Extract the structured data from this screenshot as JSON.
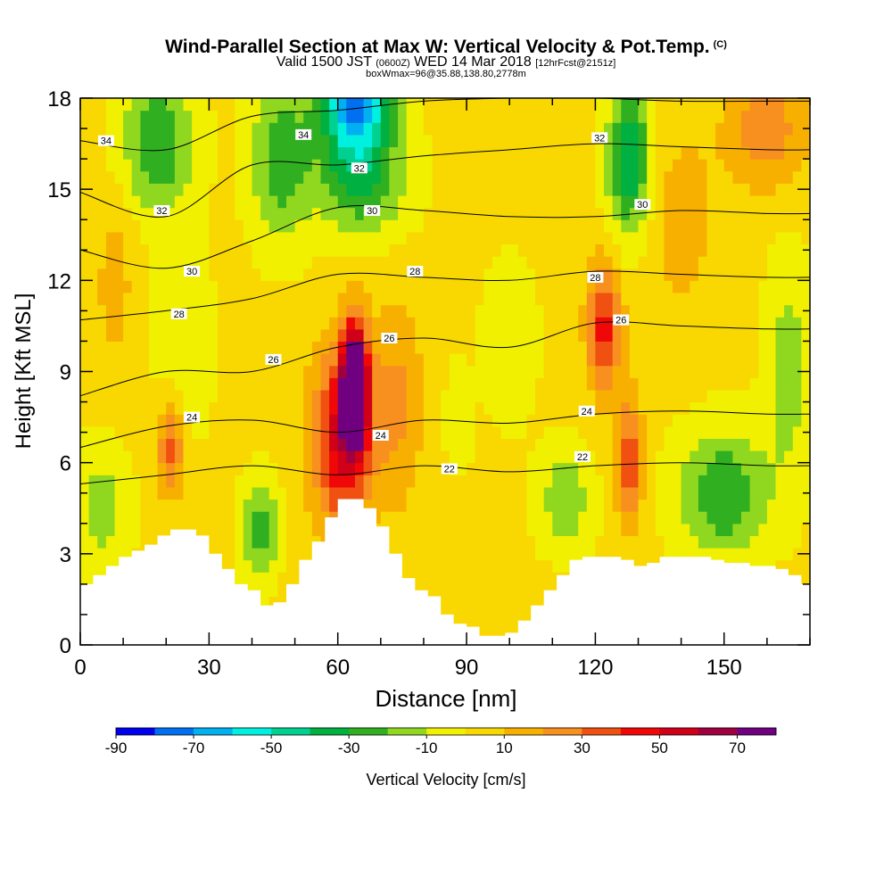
{
  "title": {
    "main": "Wind-Parallel Section at Max W: Vertical Velocity & Pot.Temp.",
    "main_tag": "(C)",
    "sub_valid": "Valid 1500 JST",
    "sub_utc": "(0600Z)",
    "sub_date": "WED 14 Mar 2018",
    "sub_fcst": "[12hrFcst@2151z]",
    "sub2": "boxWmax=96@35.88,138.80,2778m"
  },
  "chart_data": {
    "type": "heatmap",
    "xlabel": "Distance [nm]",
    "ylabel": "Height [Kft MSL]",
    "xlim": [
      0,
      170
    ],
    "ylim": [
      0,
      18
    ],
    "x_ticks": [
      0,
      30,
      60,
      90,
      120,
      150
    ],
    "y_ticks": [
      0,
      3,
      6,
      9,
      12,
      15,
      18
    ],
    "colorbar": {
      "label": "Vertical Velocity [cm/s]",
      "bins": [
        -90,
        -80,
        -70,
        -60,
        -50,
        -40,
        -30,
        -20,
        -10,
        0,
        10,
        20,
        30,
        40,
        50,
        60,
        70,
        80
      ],
      "tick_labels": [
        "-90",
        "-70",
        "-50",
        "-30",
        "-10",
        "10",
        "30",
        "50",
        "70"
      ],
      "colors": [
        "#0000f0",
        "#0070f0",
        "#00b0f0",
        "#00f0e0",
        "#00d090",
        "#00b040",
        "#30b020",
        "#90d820",
        "#f0f000",
        "#f8d800",
        "#f8b000",
        "#f89020",
        "#f05010",
        "#f00808",
        "#d00018",
        "#a00040",
        "#700080"
      ]
    },
    "terrain": {
      "x": [
        0,
        3,
        6,
        9,
        12,
        15,
        18,
        21,
        24,
        27,
        30,
        33,
        36,
        39,
        42,
        45,
        48,
        51,
        54,
        57,
        60,
        63,
        66,
        69,
        72,
        75,
        78,
        81,
        84,
        87,
        90,
        93,
        96,
        99,
        102,
        105,
        108,
        111,
        114,
        117,
        120,
        123,
        126,
        129,
        132,
        135,
        138,
        141,
        144,
        147,
        150,
        153,
        156,
        159,
        162,
        165,
        168,
        170
      ],
      "height": [
        2.0,
        2.3,
        2.6,
        2.9,
        3.1,
        3.3,
        3.6,
        3.8,
        3.8,
        3.6,
        3.0,
        2.5,
        2.0,
        1.8,
        1.3,
        1.4,
        2.0,
        2.8,
        3.4,
        4.2,
        4.8,
        4.8,
        4.5,
        3.9,
        3.0,
        2.2,
        1.8,
        1.6,
        1.0,
        0.7,
        0.6,
        0.3,
        0.3,
        0.4,
        0.8,
        1.3,
        1.8,
        2.3,
        2.8,
        2.9,
        2.9,
        2.9,
        2.8,
        2.6,
        2.7,
        2.9,
        2.9,
        2.9,
        2.9,
        2.8,
        2.7,
        2.7,
        2.6,
        2.6,
        2.5,
        2.3,
        2.0,
        2.0
      ]
    },
    "w_features": [
      {
        "x": 18,
        "y": 16.5,
        "amp": -32,
        "sx": 8,
        "sy": 2.2
      },
      {
        "x": 24,
        "y": 10.0,
        "amp": -12,
        "sx": 6,
        "sy": 3.0
      },
      {
        "x": 21,
        "y": 6.5,
        "amp": 34,
        "sx": 3,
        "sy": 1.6
      },
      {
        "x": 5,
        "y": 4.5,
        "amp": -18,
        "sx": 6,
        "sy": 2.0
      },
      {
        "x": 42,
        "y": 3.8,
        "amp": -30,
        "sx": 4,
        "sy": 1.5
      },
      {
        "x": 47,
        "y": 16.0,
        "amp": -30,
        "sx": 7,
        "sy": 2.5
      },
      {
        "x": 64,
        "y": 18.0,
        "amp": -75,
        "sx": 8,
        "sy": 2.0
      },
      {
        "x": 66,
        "y": 15.2,
        "amp": -28,
        "sx": 10,
        "sy": 1.8
      },
      {
        "x": 64,
        "y": 8.6,
        "amp": 88,
        "sx": 3.0,
        "sy": 2.0
      },
      {
        "x": 61,
        "y": 6.8,
        "amp": 52,
        "sx": 7.0,
        "sy": 3.0
      },
      {
        "x": 74,
        "y": 8.0,
        "amp": 20,
        "sx": 6,
        "sy": 3.5
      },
      {
        "x": 88,
        "y": 7.5,
        "amp": -12,
        "sx": 3,
        "sy": 1.5
      },
      {
        "x": 100,
        "y": 10.0,
        "amp": -10,
        "sx": 6,
        "sy": 2.5
      },
      {
        "x": 128,
        "y": 16.0,
        "amp": -42,
        "sx": 5,
        "sy": 2.5
      },
      {
        "x": 122,
        "y": 10.5,
        "amp": 42,
        "sx": 4,
        "sy": 2.2
      },
      {
        "x": 128,
        "y": 6.0,
        "amp": 36,
        "sx": 3,
        "sy": 2.2
      },
      {
        "x": 113,
        "y": 4.8,
        "amp": -20,
        "sx": 6,
        "sy": 1.6
      },
      {
        "x": 150,
        "y": 5.0,
        "amp": -32,
        "sx": 10,
        "sy": 2.0
      },
      {
        "x": 165,
        "y": 9.0,
        "amp": -18,
        "sx": 5,
        "sy": 3.5
      },
      {
        "x": 160,
        "y": 17.0,
        "amp": 24,
        "sx": 10,
        "sy": 2.0
      },
      {
        "x": 140,
        "y": 14.0,
        "amp": 14,
        "sx": 8,
        "sy": 3.0
      },
      {
        "x": 8,
        "y": 12.0,
        "amp": 12,
        "sx": 5,
        "sy": 3.0
      }
    ],
    "w_base": 2,
    "isentropes": [
      {
        "value": 22,
        "points": [
          [
            0,
            5.3
          ],
          [
            20,
            5.6
          ],
          [
            40,
            5.9
          ],
          [
            60,
            5.6
          ],
          [
            80,
            5.9
          ],
          [
            100,
            5.7
          ],
          [
            120,
            5.9
          ],
          [
            140,
            6.0
          ],
          [
            160,
            5.9
          ],
          [
            170,
            5.9
          ]
        ]
      },
      {
        "value": 24,
        "points": [
          [
            0,
            6.5
          ],
          [
            20,
            7.2
          ],
          [
            40,
            7.4
          ],
          [
            60,
            7.0
          ],
          [
            80,
            7.4
          ],
          [
            100,
            7.3
          ],
          [
            120,
            7.6
          ],
          [
            140,
            7.7
          ],
          [
            160,
            7.6
          ],
          [
            170,
            7.6
          ]
        ]
      },
      {
        "value": 26,
        "points": [
          [
            0,
            8.2
          ],
          [
            20,
            9.0
          ],
          [
            40,
            9.0
          ],
          [
            60,
            9.8
          ],
          [
            80,
            10.1
          ],
          [
            100,
            9.8
          ],
          [
            120,
            10.6
          ],
          [
            140,
            10.5
          ],
          [
            160,
            10.4
          ],
          [
            170,
            10.4
          ]
        ]
      },
      {
        "value": 28,
        "points": [
          [
            0,
            10.7
          ],
          [
            20,
            11.0
          ],
          [
            40,
            11.4
          ],
          [
            60,
            12.2
          ],
          [
            80,
            12.1
          ],
          [
            100,
            12.0
          ],
          [
            120,
            12.3
          ],
          [
            140,
            12.2
          ],
          [
            160,
            12.1
          ],
          [
            170,
            12.1
          ]
        ]
      },
      {
        "value": 30,
        "points": [
          [
            0,
            13.0
          ],
          [
            20,
            12.4
          ],
          [
            40,
            13.3
          ],
          [
            60,
            14.4
          ],
          [
            80,
            14.3
          ],
          [
            100,
            14.1
          ],
          [
            120,
            14.1
          ],
          [
            140,
            14.3
          ],
          [
            160,
            14.2
          ],
          [
            170,
            14.2
          ]
        ]
      },
      {
        "value": 32,
        "points": [
          [
            0,
            14.9
          ],
          [
            20,
            14.1
          ],
          [
            40,
            15.8
          ],
          [
            60,
            15.8
          ],
          [
            80,
            16.1
          ],
          [
            100,
            16.3
          ],
          [
            120,
            16.5
          ],
          [
            140,
            16.4
          ],
          [
            160,
            16.3
          ],
          [
            170,
            16.3
          ]
        ]
      },
      {
        "value": 34,
        "points": [
          [
            0,
            16.6
          ],
          [
            20,
            16.3
          ],
          [
            40,
            17.4
          ],
          [
            60,
            17.6
          ],
          [
            80,
            17.9
          ],
          [
            100,
            18.0
          ],
          [
            120,
            18.0
          ],
          [
            140,
            17.9
          ],
          [
            160,
            17.9
          ],
          [
            170,
            17.9
          ]
        ]
      }
    ],
    "contour_labels": [
      {
        "text": "34",
        "x": 6,
        "y": 16.6
      },
      {
        "text": "34",
        "x": 52,
        "y": 16.8
      },
      {
        "text": "32",
        "x": 19,
        "y": 14.3
      },
      {
        "text": "32",
        "x": 65,
        "y": 15.7
      },
      {
        "text": "32",
        "x": 121,
        "y": 16.7
      },
      {
        "text": "30",
        "x": 26,
        "y": 12.3
      },
      {
        "text": "30",
        "x": 68,
        "y": 14.3
      },
      {
        "text": "30",
        "x": 131,
        "y": 14.5
      },
      {
        "text": "28",
        "x": 23,
        "y": 10.9
      },
      {
        "text": "28",
        "x": 78,
        "y": 12.3
      },
      {
        "text": "28",
        "x": 120,
        "y": 12.1
      },
      {
        "text": "26",
        "x": 45,
        "y": 9.4
      },
      {
        "text": "26",
        "x": 72,
        "y": 10.1
      },
      {
        "text": "26",
        "x": 126,
        "y": 10.7
      },
      {
        "text": "24",
        "x": 26,
        "y": 7.5
      },
      {
        "text": "24",
        "x": 70,
        "y": 6.9
      },
      {
        "text": "24",
        "x": 118,
        "y": 7.7
      },
      {
        "text": "22",
        "x": 86,
        "y": 5.8
      },
      {
        "text": "22",
        "x": 117,
        "y": 6.2
      }
    ]
  }
}
